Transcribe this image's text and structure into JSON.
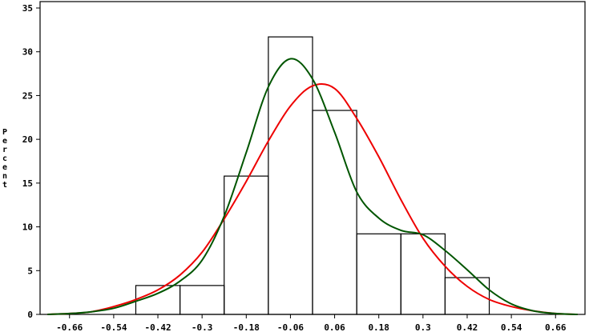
{
  "chart_data": {
    "type": "bar",
    "ylabel": "Percent",
    "xlabel": "",
    "title": "",
    "xlim": [
      -0.74,
      0.74
    ],
    "ylim": [
      0,
      35
    ],
    "x_ticks": [
      "-0.66",
      "-0.54",
      "-0.42",
      "-0.3",
      "-0.18",
      "-0.06",
      "0.06",
      "0.18",
      "0.3",
      "0.42",
      "0.54",
      "0.66"
    ],
    "y_ticks": [
      "0",
      "5",
      "10",
      "15",
      "20",
      "25",
      "30",
      "35"
    ],
    "bins": [
      {
        "left": -0.48,
        "right": -0.36,
        "value": 3.3
      },
      {
        "left": -0.36,
        "right": -0.24,
        "value": 3.3
      },
      {
        "left": -0.24,
        "right": -0.12,
        "value": 15.8
      },
      {
        "left": -0.12,
        "right": 0.0,
        "value": 31.7
      },
      {
        "left": 0.0,
        "right": 0.12,
        "value": 23.3
      },
      {
        "left": 0.12,
        "right": 0.24,
        "value": 9.2
      },
      {
        "left": 0.24,
        "right": 0.36,
        "value": 9.2
      },
      {
        "left": 0.36,
        "right": 0.48,
        "value": 4.2
      }
    ],
    "normal_curve": {
      "color": "#ee0000",
      "x": [
        -0.72,
        -0.66,
        -0.6,
        -0.54,
        -0.48,
        -0.42,
        -0.36,
        -0.3,
        -0.24,
        -0.18,
        -0.12,
        -0.06,
        0.0,
        0.06,
        0.12,
        0.18,
        0.24,
        0.3,
        0.36,
        0.42,
        0.48,
        0.54,
        0.6,
        0.66,
        0.72
      ],
      "y": [
        0.0,
        0.1,
        0.3,
        0.9,
        1.7,
        2.8,
        4.5,
        7.1,
        10.9,
        15.2,
        19.8,
        23.8,
        26.1,
        25.8,
        22.4,
        18.0,
        13.1,
        8.7,
        5.5,
        3.2,
        1.7,
        0.9,
        0.4,
        0.1,
        0.0
      ]
    },
    "kernel_curve": {
      "color": "#005500",
      "x": [
        -0.72,
        -0.66,
        -0.6,
        -0.54,
        -0.48,
        -0.42,
        -0.36,
        -0.3,
        -0.24,
        -0.18,
        -0.12,
        -0.06,
        0.0,
        0.06,
        0.12,
        0.18,
        0.24,
        0.3,
        0.36,
        0.42,
        0.48,
        0.54,
        0.6,
        0.66,
        0.72
      ],
      "y": [
        0.0,
        0.1,
        0.3,
        0.7,
        1.5,
        2.4,
        3.8,
        6.2,
        11.2,
        18.5,
        26.0,
        29.2,
        26.9,
        20.8,
        14.0,
        11.0,
        9.6,
        9.1,
        7.3,
        5.1,
        2.8,
        1.2,
        0.4,
        0.1,
        0.0
      ]
    }
  }
}
